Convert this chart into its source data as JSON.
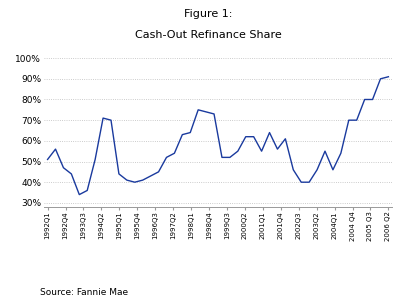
{
  "title_line1": "Figure 1:",
  "title_line2": "Cash-Out Refinance Share",
  "source": "Source: Fannie Mae",
  "line_color": "#1a3a9e",
  "background_color": "#ffffff",
  "plot_bg_color": "#ffffff",
  "ylim": [
    0.28,
    1.02
  ],
  "yticks": [
    0.3,
    0.4,
    0.5,
    0.6,
    0.7,
    0.8,
    0.9,
    1.0
  ],
  "ytick_labels": [
    "30%",
    "40%",
    "50%",
    "60%",
    "70%",
    "80%",
    "90%",
    "100%"
  ],
  "x_labels": [
    "1992Q1",
    "1992Q4",
    "1993Q3",
    "1994Q2",
    "1995Q1",
    "1995Q4",
    "1996Q3",
    "1997Q2",
    "1998Q1",
    "1998Q4",
    "1999Q3",
    "2000Q2",
    "2001Q1",
    "2001Q4",
    "2002Q3",
    "2003Q2",
    "2004Q1",
    "2004 Q4",
    "2005 Q3",
    "2006 Q2"
  ],
  "values": [
    0.51,
    0.56,
    0.47,
    0.44,
    0.34,
    0.36,
    0.51,
    0.71,
    0.7,
    0.44,
    0.41,
    0.4,
    0.41,
    0.43,
    0.45,
    0.52,
    0.54,
    0.63,
    0.64,
    0.75,
    0.74,
    0.73,
    0.52,
    0.52,
    0.55,
    0.62,
    0.62,
    0.55,
    0.64,
    0.56,
    0.61,
    0.46,
    0.4,
    0.4,
    0.46,
    0.55,
    0.46,
    0.54,
    0.7,
    0.7,
    0.8,
    0.8,
    0.9,
    0.91
  ],
  "num_points": 44,
  "title_fontsize": 8,
  "ytick_fontsize": 6.5,
  "xtick_fontsize": 5,
  "source_fontsize": 6.5
}
